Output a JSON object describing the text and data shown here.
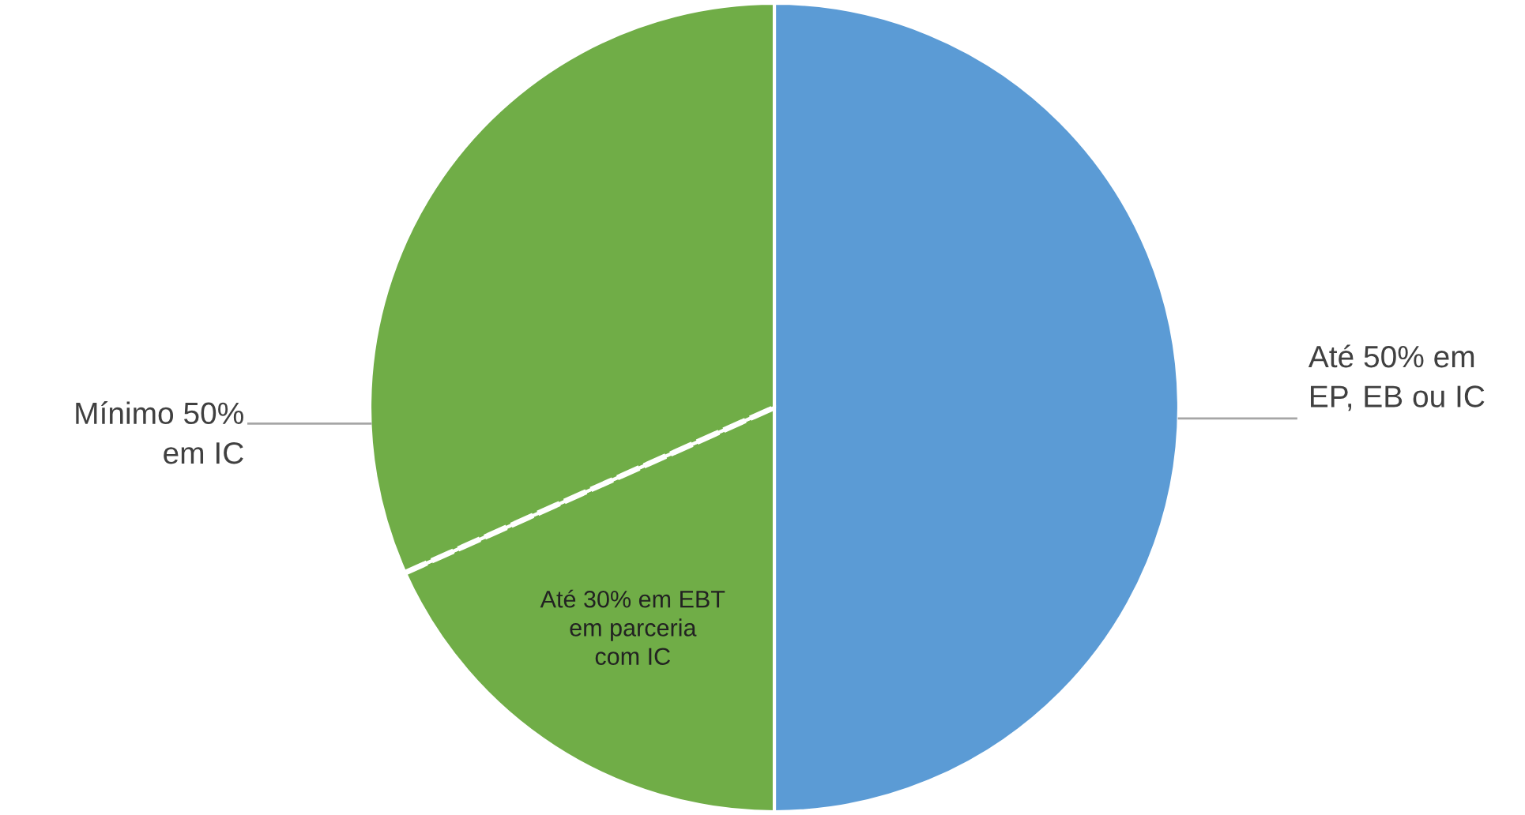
{
  "chart_data": {
    "type": "pie",
    "categories": [
      "Até 50% em\nEP, EB ou IC",
      "Até 30% em EBT\nem parceria\ncom IC",
      "Mínimo 50%\nem IC"
    ],
    "values": [
      50,
      18.3,
      31.7
    ],
    "colors": [
      "#5b9bd5",
      "#70ad47",
      "#70ad47"
    ],
    "legend": false
  }
}
